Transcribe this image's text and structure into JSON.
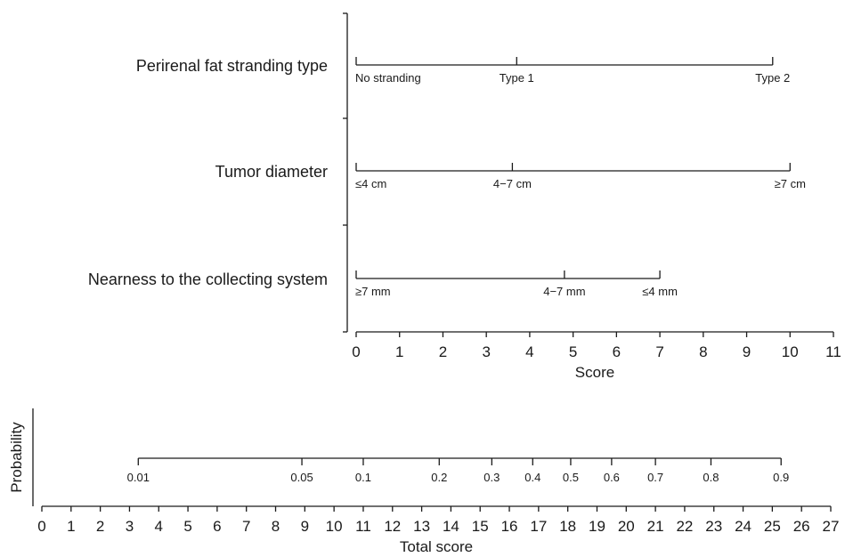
{
  "chart_data": [
    {
      "type": "nomogram",
      "panel": "score",
      "xlabel": "Score",
      "xlim": [
        0,
        11
      ],
      "ticks": [
        0,
        1,
        2,
        3,
        4,
        5,
        6,
        7,
        8,
        9,
        10,
        11
      ],
      "tick_labels": [
        "0",
        "1",
        "2",
        "3",
        "4",
        "5",
        "6",
        "7",
        "8",
        "9",
        "10",
        "11"
      ],
      "variables": [
        {
          "name": "Perirenal fat stranding type",
          "points": [
            {
              "label": "No stranding",
              "score": 0
            },
            {
              "label": "Type 1",
              "score": 3.7
            },
            {
              "label": "Type 2",
              "score": 9.6
            }
          ]
        },
        {
          "name": "Tumor diameter",
          "points": [
            {
              "label": "≤4 cm",
              "score": 0
            },
            {
              "label": "4−7 cm",
              "score": 3.6
            },
            {
              "label": "≥7 cm",
              "score": 10
            }
          ]
        },
        {
          "name": "Nearness to the collecting system",
          "points": [
            {
              "label": "≥7 mm",
              "score": 0
            },
            {
              "label": "4−7 mm",
              "score": 4.8
            },
            {
              "label": "≤4 mm",
              "score": 7
            }
          ]
        }
      ]
    },
    {
      "type": "nomogram",
      "panel": "probability",
      "xlabel": "Total score",
      "ylabel": "Probability",
      "xlim": [
        0,
        27
      ],
      "ticks": [
        0,
        1,
        2,
        3,
        4,
        5,
        6,
        7,
        8,
        9,
        10,
        11,
        12,
        13,
        14,
        15,
        16,
        17,
        18,
        19,
        20,
        21,
        22,
        23,
        24,
        25,
        26,
        27
      ],
      "tick_labels": [
        "0",
        "1",
        "2",
        "3",
        "4",
        "5",
        "6",
        "7",
        "8",
        "9",
        "10",
        "11",
        "12",
        "13",
        "14",
        "15",
        "16",
        "17",
        "18",
        "19",
        "20",
        "21",
        "22",
        "23",
        "24",
        "25",
        "26",
        "27"
      ],
      "probabilities": [
        {
          "label": "0.01",
          "total_score": 3.3
        },
        {
          "label": "0.05",
          "total_score": 8.9
        },
        {
          "label": "0.1",
          "total_score": 11.0
        },
        {
          "label": "0.2",
          "total_score": 13.6
        },
        {
          "label": "0.3",
          "total_score": 15.4
        },
        {
          "label": "0.4",
          "total_score": 16.8
        },
        {
          "label": "0.5",
          "total_score": 18.1
        },
        {
          "label": "0.6",
          "total_score": 19.5
        },
        {
          "label": "0.7",
          "total_score": 21.0
        },
        {
          "label": "0.8",
          "total_score": 22.9
        },
        {
          "label": "0.9",
          "total_score": 25.3
        }
      ]
    }
  ]
}
